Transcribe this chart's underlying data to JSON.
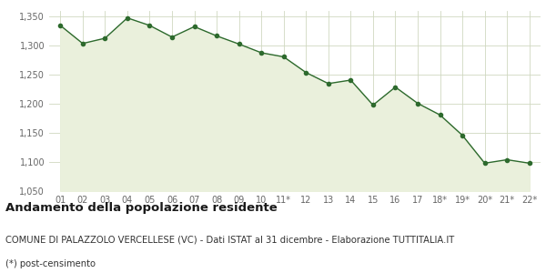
{
  "x_labels": [
    "01",
    "02",
    "03",
    "04",
    "05",
    "06",
    "07",
    "08",
    "09",
    "10",
    "11*",
    "12",
    "13",
    "14",
    "15",
    "16",
    "17",
    "18*",
    "19*",
    "20*",
    "21*",
    "22*"
  ],
  "y_values": [
    1335,
    1304,
    1313,
    1348,
    1335,
    1315,
    1333,
    1317,
    1303,
    1288,
    1281,
    1254,
    1235,
    1241,
    1198,
    1229,
    1201,
    1181,
    1146,
    1098,
    1104,
    1098
  ],
  "line_color": "#2d6a2d",
  "fill_color": "#eaf0dc",
  "marker_color": "#2d6a2d",
  "bg_color": "#ffffff",
  "grid_color": "#d0d8c0",
  "ylim": [
    1050,
    1360
  ],
  "yticks": [
    1050,
    1100,
    1150,
    1200,
    1250,
    1300,
    1350
  ],
  "title": "Andamento della popolazione residente",
  "subtitle": "COMUNE DI PALAZZOLO VERCELLESE (VC) - Dati ISTAT al 31 dicembre - Elaborazione TUTTITALIA.IT",
  "footnote": "(*) post-censimento",
  "title_fontsize": 9.5,
  "subtitle_fontsize": 7.2,
  "footnote_fontsize": 7.2,
  "tick_fontsize": 7,
  "axis_label_color": "#666666"
}
